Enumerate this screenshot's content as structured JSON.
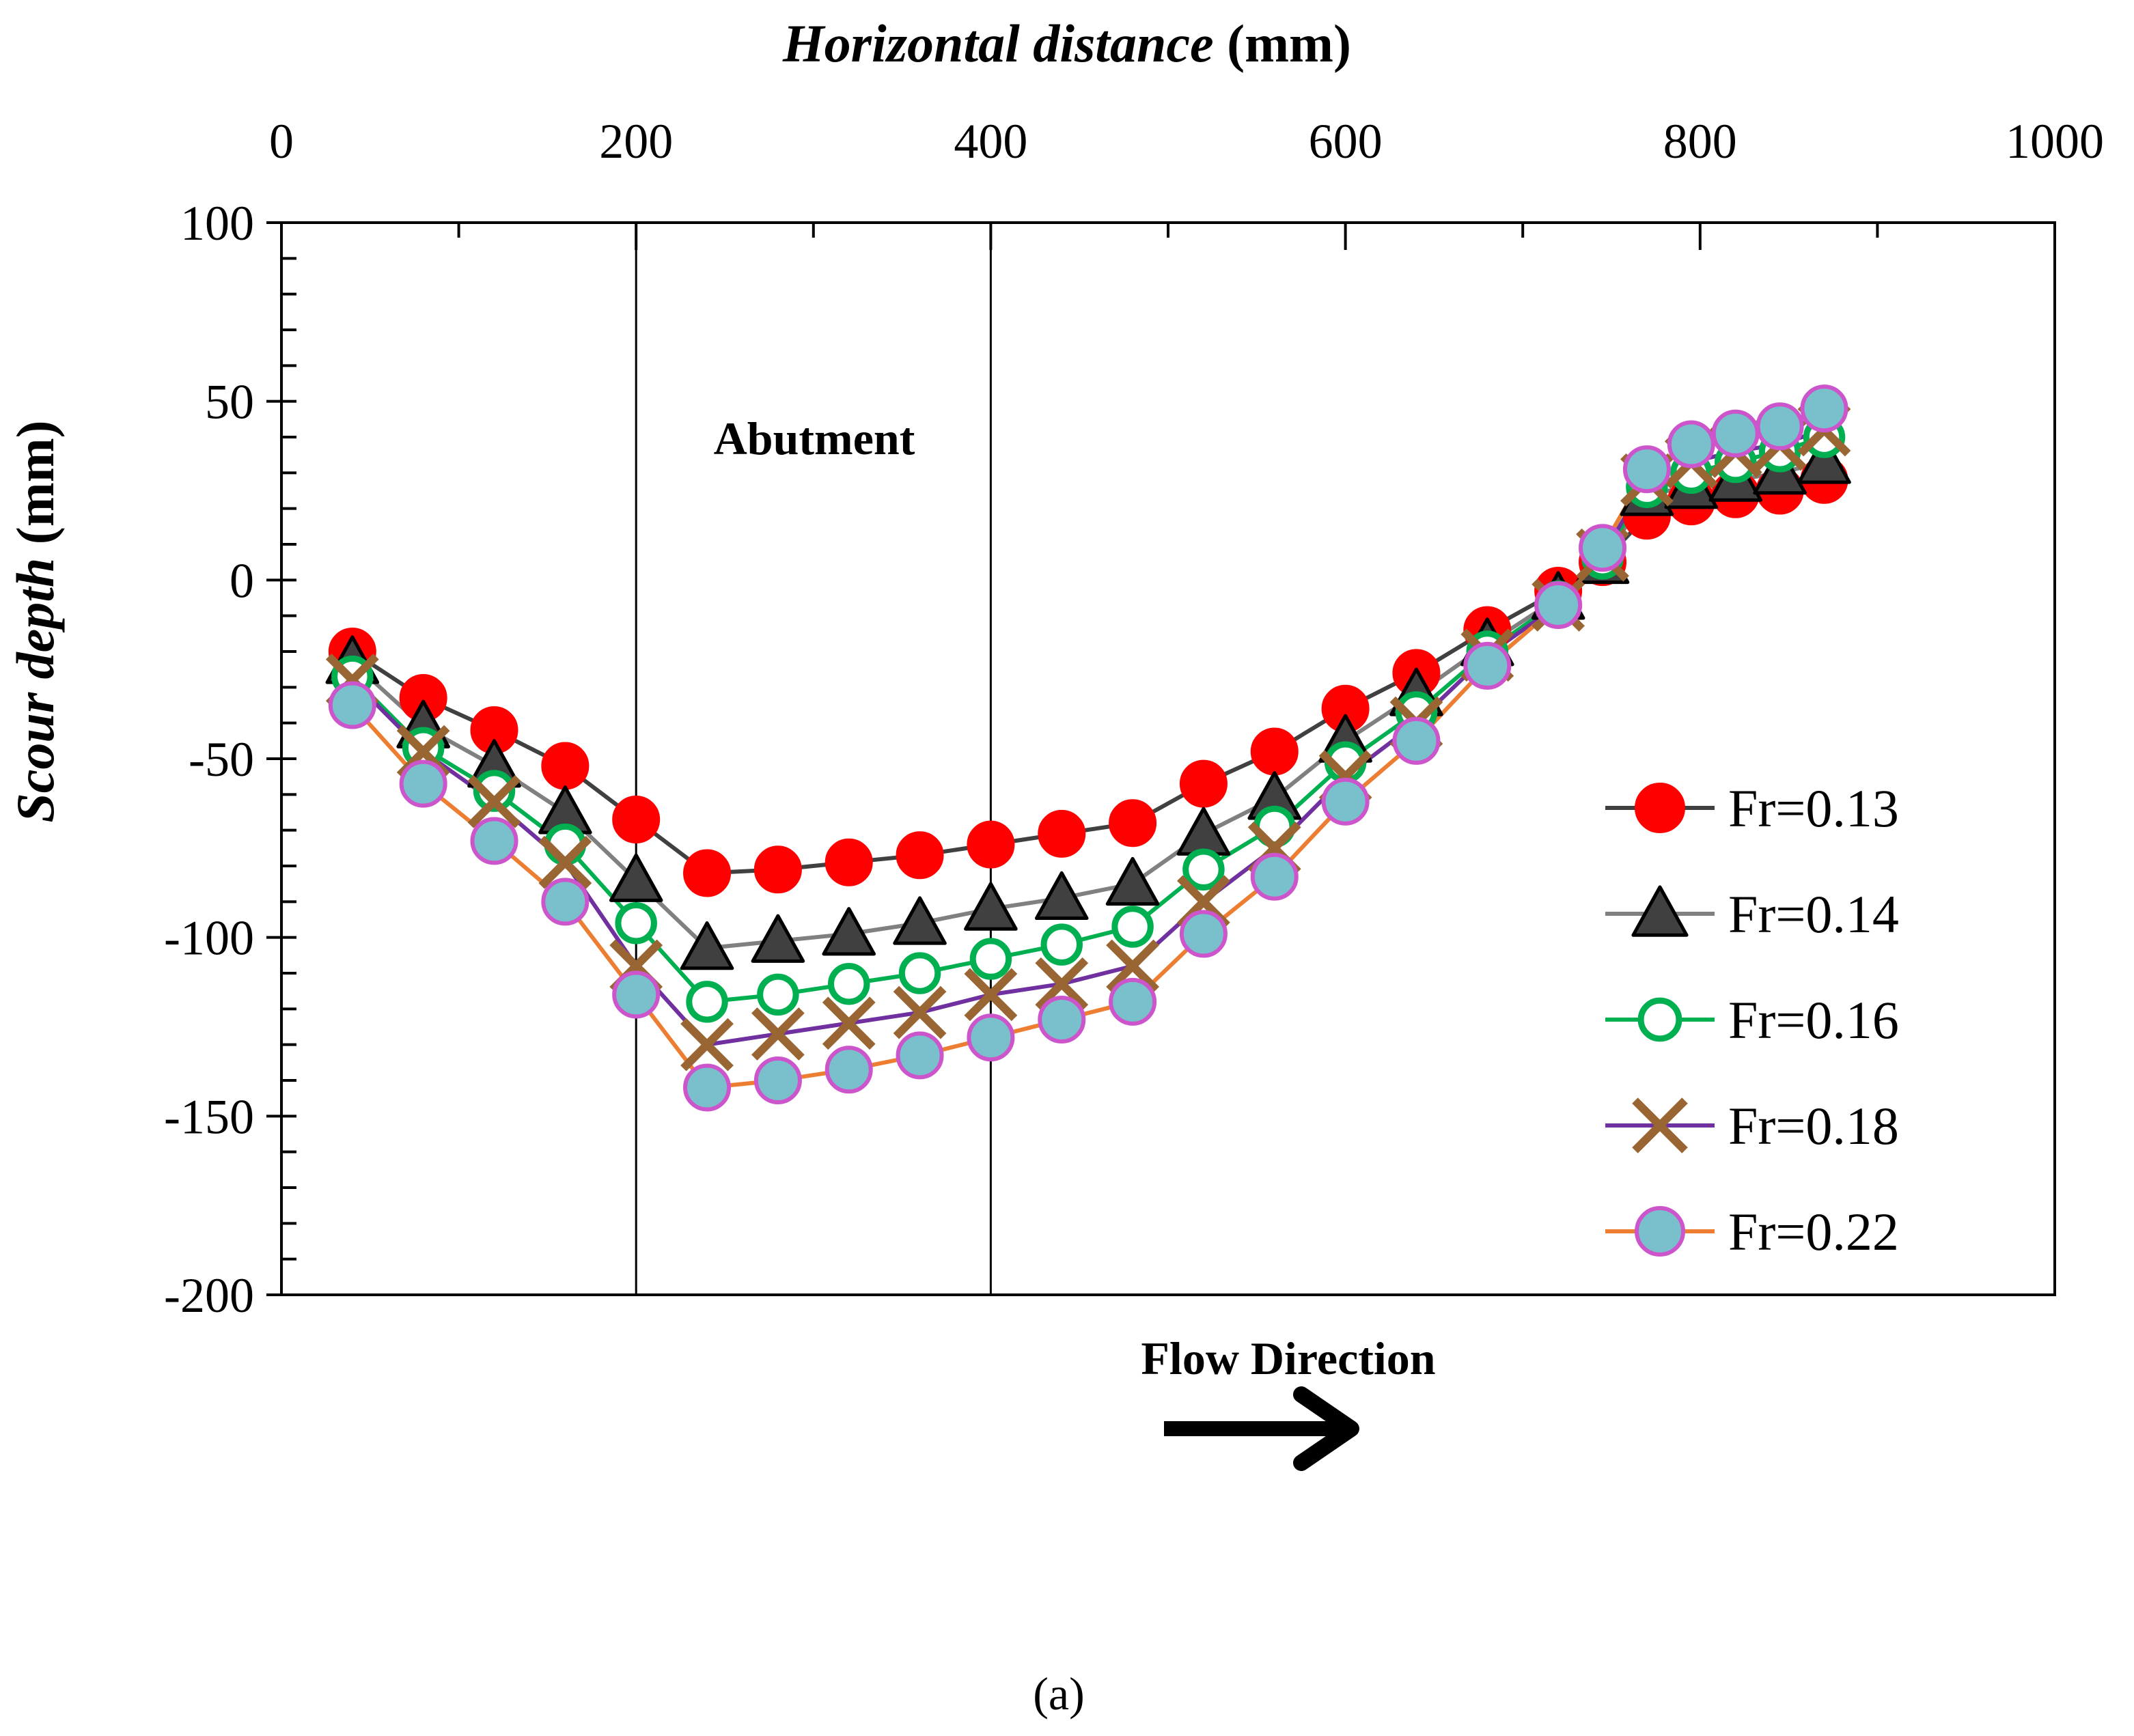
{
  "chart_data": {
    "type": "line",
    "title": "",
    "xlabel_italic": "Horizontal distance",
    "xlabel_unit": " (mm)",
    "ylabel_italic": "Scour depth",
    "ylabel_unit": " (mm)",
    "xlim": [
      0,
      1000
    ],
    "ylim": [
      -200,
      100
    ],
    "xticks": [
      0,
      200,
      400,
      600,
      800,
      1000
    ],
    "yticks": [
      100,
      50,
      0,
      -50,
      -100,
      -150,
      -200
    ],
    "xtick_labels": [
      "0",
      "200",
      "400",
      "600",
      "800",
      "1000"
    ],
    "ytick_labels": [
      "100",
      "50",
      "0",
      "-50",
      "-100",
      "-150",
      "-200"
    ],
    "x_axis_position": "top",
    "legend_position": "bottom-right",
    "x": [
      40,
      80,
      120,
      160,
      200,
      240,
      280,
      320,
      360,
      400,
      440,
      480,
      520,
      560,
      600,
      640,
      680,
      720,
      745,
      770,
      795,
      820,
      845,
      870
    ],
    "series": [
      {
        "name": "Fr=0.13",
        "line_color": "#404040",
        "marker": "circle-filled",
        "marker_fill": "#ff0000",
        "marker_stroke": "#ff0000",
        "values": [
          -20,
          -33,
          -42,
          -52,
          -67,
          -82,
          -81,
          -79,
          -77,
          -74,
          -71,
          -68,
          -57,
          -48,
          -36,
          -26,
          -14,
          -3,
          5,
          18,
          22,
          24,
          25,
          28
        ]
      },
      {
        "name": "Fr=0.14",
        "line_color": "#808080",
        "marker": "triangle",
        "marker_fill": "#404040",
        "marker_stroke": "#000000",
        "values": [
          -23,
          -41,
          -52,
          -65,
          -84,
          -103,
          -101,
          -99,
          -96,
          -92,
          -89,
          -85,
          -71,
          -61,
          -45,
          -32,
          -18,
          -5,
          5,
          24,
          26,
          28,
          30,
          33
        ]
      },
      {
        "name": "Fr=0.16",
        "line_color": "#00b050",
        "marker": "circle-open",
        "marker_fill": "#ffffff",
        "marker_stroke": "#00b050",
        "values": [
          -27,
          -47,
          -59,
          -74,
          -96,
          -118,
          -116,
          -113,
          -110,
          -106,
          -102,
          -97,
          -81,
          -69,
          -51,
          -37,
          -20,
          -6,
          6,
          26,
          30,
          33,
          36,
          40
        ]
      },
      {
        "name": "Fr=0.18",
        "line_color": "#7030a0",
        "marker": "x",
        "marker_fill": "none",
        "marker_stroke": "#996633",
        "values": [
          -28,
          -48,
          -62,
          -79,
          -108,
          -130,
          -127,
          -124,
          -121,
          -116,
          -113,
          -108,
          -90,
          -75,
          -55,
          -40,
          -21,
          -7,
          7,
          28,
          33,
          36,
          38,
          42
        ]
      },
      {
        "name": "Fr=0.22",
        "line_color": "#ed7d31",
        "marker": "circle-filled",
        "marker_fill": "#79c0cc",
        "marker_stroke": "#cc55cc",
        "values": [
          -35,
          -57,
          -73,
          -90,
          -116,
          -142,
          -140,
          -137,
          -133,
          -128,
          -123,
          -118,
          -99,
          -83,
          -62,
          -45,
          -24,
          -7,
          9,
          31,
          38,
          41,
          43,
          48
        ]
      }
    ],
    "annotations": {
      "abutment_label": "Abutment",
      "abutment_x_range": [
        200,
        400
      ],
      "flow_label": "Flow Direction",
      "caption": "(a)"
    }
  }
}
